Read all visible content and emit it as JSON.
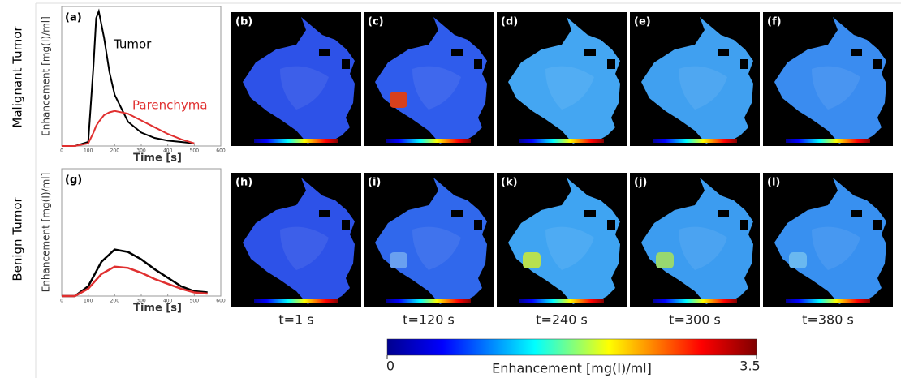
{
  "row_labels": [
    "Malignant Tumor",
    "Benign Tumor"
  ],
  "charts": [
    {
      "type": "line",
      "panel": "(a)",
      "ylabel": "Enhancement [mg(I)/ml]",
      "xlabel": "Time [s]",
      "xlim": [
        0,
        600
      ],
      "xticks": [
        0,
        100,
        200,
        300,
        400,
        500,
        600
      ],
      "ylim": [
        0,
        100
      ],
      "x": [
        0,
        50,
        100,
        120,
        130,
        140,
        160,
        180,
        200,
        250,
        300,
        350,
        400,
        450,
        500
      ],
      "series": [
        {
          "name": "Tumor",
          "color": "#000000",
          "values": [
            0,
            0,
            3,
            60,
            95,
            100,
            80,
            55,
            38,
            18,
            10,
            6,
            4,
            3,
            2
          ]
        },
        {
          "name": "Parenchyma",
          "color": "#e03030",
          "values": [
            0,
            0,
            2,
            10,
            15,
            18,
            23,
            25,
            26,
            24,
            19,
            14,
            9,
            5,
            2
          ]
        }
      ]
    },
    {
      "type": "line",
      "panel": "(g)",
      "ylabel": "Enhancement [mg(I)/ml]",
      "xlabel": "Time [s]",
      "xlim": [
        0,
        600
      ],
      "xticks": [
        0,
        100,
        200,
        300,
        400,
        500,
        600
      ],
      "ylim": [
        0,
        100
      ],
      "x": [
        0,
        50,
        100,
        150,
        200,
        250,
        300,
        350,
        400,
        450,
        500,
        550
      ],
      "series": [
        {
          "color": "#000000",
          "values": [
            0,
            0,
            8,
            28,
            38,
            36,
            30,
            22,
            15,
            8,
            4,
            3
          ]
        },
        {
          "color": "#e03030",
          "values": [
            0,
            0,
            6,
            18,
            24,
            23,
            19,
            14,
            10,
            6,
            3,
            2
          ]
        }
      ]
    }
  ],
  "image_panels": [
    [
      "(b)",
      "(c)",
      "(d)",
      "(e)",
      "(f)"
    ],
    [
      "(h)",
      "(i)",
      "(k)",
      "(j)",
      "(l)"
    ]
  ],
  "time_labels": [
    "t=1 s",
    "t=120 s",
    "t=240 s",
    "t=300 s",
    "t=380 s"
  ],
  "colorbar": {
    "range": [
      0,
      3.5
    ],
    "ticks": [
      0,
      3.5
    ],
    "label": "Enhancement [mg(I)/ml]"
  }
}
